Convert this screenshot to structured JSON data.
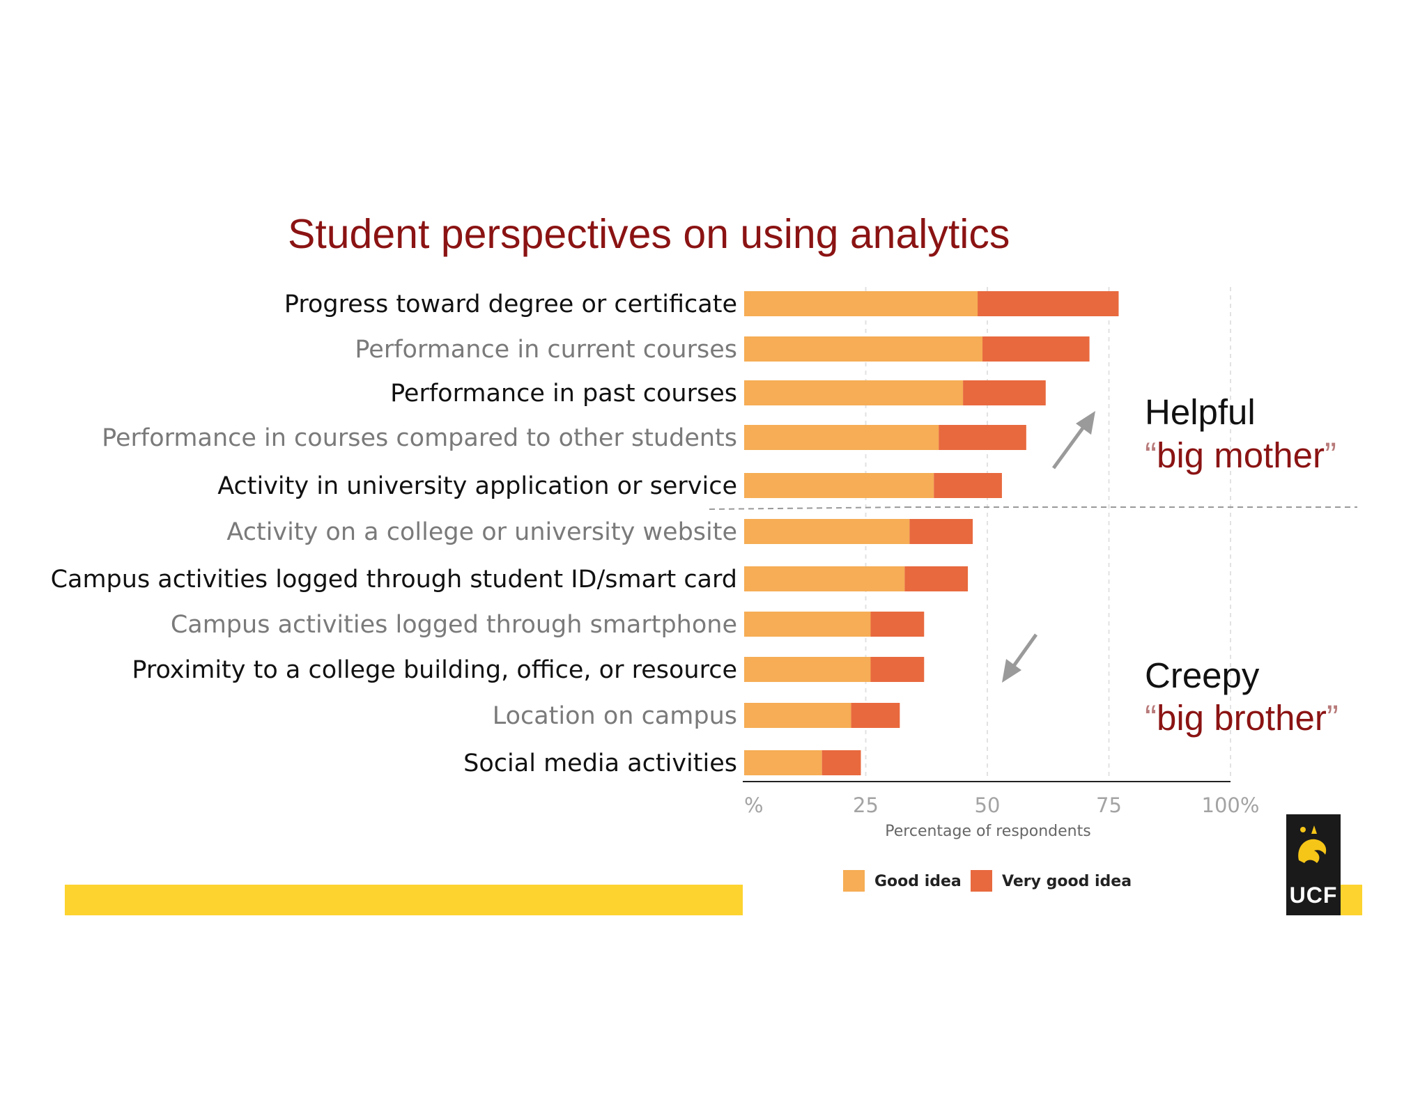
{
  "title": "Student perspectives on using analytics",
  "chart_data": {
    "type": "bar",
    "orientation": "horizontal",
    "stacked": true,
    "categories": [
      "Progress toward degree or certificate",
      "Performance in current courses",
      "Performance in past courses",
      "Performance in courses compared to other students",
      "Activity in university application or service",
      "Activity on a college or university website",
      "Campus activities logged through student ID/smart card",
      "Campus activities logged through smartphone",
      "Proximity to a college building, office, or resource",
      "Location on campus",
      "Social media activities"
    ],
    "series": [
      {
        "name": "Good idea",
        "color": "#f6ad55",
        "values": [
          48,
          49,
          45,
          40,
          39,
          34,
          33,
          26,
          26,
          22,
          16
        ]
      },
      {
        "name": "Very good idea",
        "color": "#e8693e",
        "values": [
          29,
          22,
          17,
          18,
          14,
          13,
          13,
          11,
          11,
          10,
          8
        ]
      }
    ],
    "xlabel": "Percentage of respondents",
    "xlim": [
      0,
      100
    ],
    "xticks": [
      "%",
      "25",
      "50",
      "75",
      "100%"
    ],
    "grid": "vertical dashed",
    "legend_position": "bottom"
  },
  "annotations": {
    "helpful_head": "Helpful",
    "helpful_quote": "big mother",
    "creepy_head": "Creepy",
    "creepy_quote": "big brother"
  },
  "logo_text": "UCF"
}
